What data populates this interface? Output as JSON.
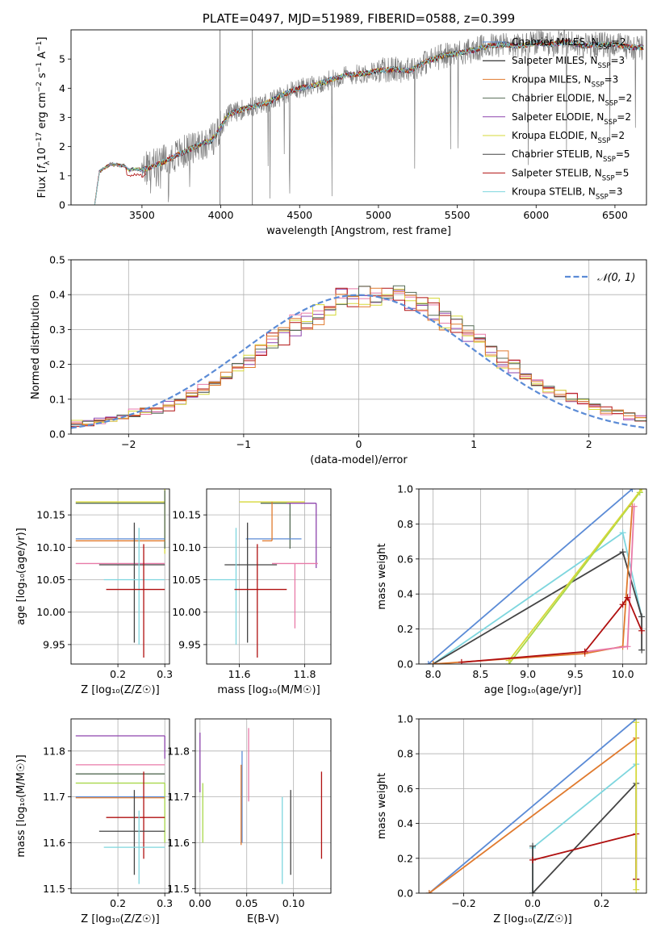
{
  "colors": {
    "chabrier_miles": "#5b8bd6",
    "salpeter_miles": "#000000",
    "kroupa_miles": "#e07a2e",
    "chabrier_elodie": "#556b55",
    "salpeter_elodie": "#8e44ad",
    "kroupa_elodie": "#d6d83a",
    "chabrier_stelib": "#444444",
    "salpeter_stelib": "#b01010",
    "kroupa_stelib": "#7ed6de",
    "data": "#808080",
    "pink": "#e87aa8",
    "lime": "#a8d84a",
    "grid": "#b0b0b0"
  },
  "chart_data": [
    {
      "id": "spectrum",
      "type": "line",
      "title": "PLATE=0497, MJD=51989, FIBERID=0588, z=0.399",
      "xlabel": "wavelength [Angstrom, rest frame]",
      "ylabel_parts": [
        "Flux [",
        "f",
        "λ",
        "10",
        "−17",
        " erg cm",
        "−2",
        " s",
        "−1",
        " A",
        "−1",
        "]"
      ],
      "xlim": [
        3050,
        6700
      ],
      "ylim": [
        0,
        6
      ],
      "xticks": [
        3500,
        4000,
        4500,
        5000,
        5500,
        6000,
        6500
      ],
      "yticks": [
        0,
        1,
        2,
        3,
        4,
        5
      ],
      "grid": false,
      "legend_placement": "top-right",
      "spectrum_keypoints": {
        "x": [
          3200,
          3230,
          3300,
          3380,
          3420,
          3460,
          3500,
          3560,
          3650,
          3720,
          3800,
          3880,
          3940,
          3980,
          4050,
          4150,
          4300,
          4400,
          4500,
          4600,
          4700,
          4800,
          4900,
          5000,
          5100,
          5200,
          5300,
          5400,
          5500,
          5600,
          5700,
          5800,
          5900,
          6000,
          6100,
          6200,
          6300,
          6400,
          6500,
          6600
        ],
        "y": [
          0,
          1.15,
          1.4,
          1.35,
          1.2,
          1.25,
          1.2,
          1.3,
          1.5,
          1.7,
          1.9,
          2.1,
          2.2,
          2.5,
          3.1,
          3.3,
          3.5,
          3.8,
          4.0,
          4.1,
          4.3,
          4.45,
          4.5,
          4.6,
          4.65,
          4.6,
          4.9,
          5.1,
          5.2,
          5.3,
          5.45,
          5.5,
          5.45,
          5.55,
          5.5,
          5.6,
          5.45,
          5.5,
          5.5,
          5.4
        ]
      },
      "series": [
        {
          "name_parts": [
            "Chabrier MILES, N",
            "SSP",
            "=2"
          ],
          "color_key": "chabrier_miles"
        },
        {
          "name_parts": [
            "Salpeter MILES, N",
            "SSP",
            "=3"
          ],
          "color_key": "salpeter_miles"
        },
        {
          "name_parts": [
            "Kroupa MILES, N",
            "SSP",
            "=3"
          ],
          "color_key": "kroupa_miles"
        },
        {
          "name_parts": [
            "Chabrier ELODIE, N",
            "SSP",
            "=2"
          ],
          "color_key": "chabrier_elodie"
        },
        {
          "name_parts": [
            "Salpeter ELODIE, N",
            "SSP",
            "=2"
          ],
          "color_key": "salpeter_elodie"
        },
        {
          "name_parts": [
            "Kroupa ELODIE, N",
            "SSP",
            "=2"
          ],
          "color_key": "kroupa_elodie"
        },
        {
          "name_parts": [
            "Chabrier STELIB, N",
            "SSP",
            "=5"
          ],
          "color_key": "chabrier_stelib"
        },
        {
          "name_parts": [
            "Salpeter STELIB, N",
            "SSP",
            "=5"
          ],
          "color_key": "salpeter_stelib"
        },
        {
          "name_parts": [
            "Kroupa STELIB, N",
            "SSP",
            "=3"
          ],
          "color_key": "kroupa_stelib"
        }
      ]
    },
    {
      "id": "residuals",
      "type": "line",
      "xlabel": "(data-model)/error",
      "ylabel": "Normed distribution",
      "xlim": [
        -2.5,
        2.5
      ],
      "ylim": [
        0,
        0.5
      ],
      "xticks": [
        -2,
        -1,
        0,
        1,
        2
      ],
      "yticks": [
        0.0,
        0.1,
        0.2,
        0.3,
        0.4,
        0.5
      ],
      "grid": true,
      "legend_placement": "top-right",
      "gaussian_label": "𝒩(0, 1)",
      "hist_series_colors": [
        "salpeter_elodie",
        "pink",
        "kroupa_elodie",
        "salpeter_stelib",
        "chabrier_elodie",
        "kroupa_miles"
      ]
    },
    {
      "id": "age_vs_Z",
      "type": "scatter",
      "xlabel": "Z [log₁₀(Z/Z☉)]",
      "ylabel": "age  [log₁₀(age/yr)]",
      "xlim": [
        0.1,
        0.31
      ],
      "ylim": [
        9.92,
        10.19
      ],
      "xticks": [
        0.2,
        0.3
      ],
      "yticks": [
        9.95,
        10.0,
        10.05,
        10.1,
        10.15
      ],
      "grid": true,
      "points": [
        {
          "color_key": "kroupa_elodie",
          "x": 0.3,
          "y": 10.17,
          "xerr": [
            0.19,
            0.0
          ],
          "yerr": [
            0.08,
            0.02
          ]
        },
        {
          "color_key": "chabrier_elodie",
          "x": 0.3,
          "y": 10.168,
          "xerr": [
            0.19,
            0.0
          ],
          "yerr": [
            0.07,
            0.02
          ]
        },
        {
          "color_key": "chabrier_miles",
          "x": 0.3,
          "y": 10.113,
          "xerr": [
            0.19,
            0.0
          ],
          "yerr": [
            0.0,
            0.0
          ]
        },
        {
          "color_key": "kroupa_miles",
          "x": 0.3,
          "y": 10.11,
          "xerr": [
            0.19,
            0.0
          ],
          "yerr": [
            0.0,
            0.0
          ]
        },
        {
          "color_key": "pink",
          "x": 0.3,
          "y": 10.075,
          "xerr": [
            0.19,
            0.0
          ],
          "yerr": [
            0.0,
            0.0
          ]
        },
        {
          "color_key": "chabrier_stelib",
          "x": 0.235,
          "y": 10.073,
          "xerr": [
            0.075,
            0.065
          ],
          "yerr": [
            0.12,
            0.065
          ]
        },
        {
          "color_key": "kroupa_stelib",
          "x": 0.245,
          "y": 10.05,
          "xerr": [
            0.075,
            0.055
          ],
          "yerr": [
            0.1,
            0.08
          ]
        },
        {
          "color_key": "salpeter_stelib",
          "x": 0.255,
          "y": 10.035,
          "xerr": [
            0.08,
            0.045
          ],
          "yerr": [
            0.105,
            0.07
          ]
        }
      ]
    },
    {
      "id": "age_vs_mass",
      "type": "scatter",
      "xlabel": "mass [log₁₀(M/M☉)]",
      "xlim": [
        11.5,
        11.88
      ],
      "ylim": [
        9.92,
        10.19
      ],
      "xticks": [
        11.6,
        11.8
      ],
      "yticks": [
        9.95,
        10.0,
        10.05,
        10.1,
        10.15
      ],
      "grid": true,
      "points": [
        {
          "color_key": "kroupa_elodie",
          "x": 11.73,
          "y": 10.17,
          "xerr": [
            0.13,
            0.07
          ],
          "yerr": [
            0.0,
            0.0
          ]
        },
        {
          "color_key": "chabrier_elodie",
          "x": 11.755,
          "y": 10.168,
          "xerr": [
            0.09,
            0.0
          ],
          "yerr": [
            0.07,
            0.0
          ]
        },
        {
          "color_key": "salpeter_elodie",
          "x": 11.835,
          "y": 10.168,
          "xerr": [
            0.09,
            0.0
          ],
          "yerr": [
            0.1,
            0.0
          ]
        },
        {
          "color_key": "chabrier_miles",
          "x": 11.7,
          "y": 10.113,
          "xerr": [
            0.08,
            0.09
          ],
          "yerr": [
            0.0,
            0.0
          ]
        },
        {
          "color_key": "kroupa_miles",
          "x": 11.7,
          "y": 10.11,
          "xerr": [
            0.03,
            0.0
          ],
          "yerr": [
            0.0,
            0.06
          ]
        },
        {
          "color_key": "pink",
          "x": 11.77,
          "y": 10.075,
          "xerr": [
            0.07,
            0.07
          ],
          "yerr": [
            0.1,
            0.0
          ]
        },
        {
          "color_key": "chabrier_stelib",
          "x": 11.625,
          "y": 10.073,
          "xerr": [
            0.07,
            0.09
          ],
          "yerr": [
            0.12,
            0.065
          ]
        },
        {
          "color_key": "kroupa_stelib",
          "x": 11.59,
          "y": 10.05,
          "xerr": [
            0.08,
            0.0
          ],
          "yerr": [
            0.1,
            0.08
          ]
        },
        {
          "color_key": "salpeter_stelib",
          "x": 11.655,
          "y": 10.035,
          "xerr": [
            0.07,
            0.09
          ],
          "yerr": [
            0.105,
            0.07
          ]
        }
      ]
    },
    {
      "id": "mass_weight_vs_age",
      "type": "line",
      "xlabel": "age  [log₁₀(age/yr)]",
      "ylabel": "mass weight",
      "xlim": [
        7.85,
        10.25
      ],
      "ylim": [
        0,
        1
      ],
      "xticks": [
        8.0,
        8.5,
        9.0,
        9.5,
        10.0
      ],
      "yticks": [
        0.0,
        0.2,
        0.4,
        0.6,
        0.8,
        1.0
      ],
      "grid": true,
      "series": [
        {
          "color_key": "chabrier_miles",
          "x": [
            7.95,
            10.1
          ],
          "y": [
            0.0,
            1.0
          ]
        },
        {
          "color_key": "kroupa_stelib",
          "x": [
            8.0,
            10.0,
            10.2
          ],
          "y": [
            0.0,
            0.75,
            0.27
          ]
        },
        {
          "color_key": "chabrier_stelib",
          "x": [
            8.0,
            10.0,
            10.2,
            10.2
          ],
          "y": [
            0.0,
            0.64,
            0.27,
            0.08
          ]
        },
        {
          "color_key": "lime",
          "x": [
            8.8,
            10.18
          ],
          "y": [
            0.0,
            0.98
          ]
        },
        {
          "color_key": "kroupa_elodie",
          "x": [
            8.8,
            10.2
          ],
          "y": [
            0.02,
            1.0
          ]
        },
        {
          "color_key": "kroupa_miles",
          "x": [
            8.0,
            9.6,
            10.0,
            10.1
          ],
          "y": [
            0.0,
            0.06,
            0.1,
            0.9
          ]
        },
        {
          "color_key": "pink",
          "x": [
            9.6,
            10.05,
            10.12
          ],
          "y": [
            0.07,
            0.1,
            0.9
          ]
        },
        {
          "color_key": "salpeter_stelib",
          "x": [
            8.3,
            9.6,
            10.0,
            10.05,
            10.2
          ],
          "y": [
            0.01,
            0.07,
            0.34,
            0.38,
            0.19
          ]
        }
      ]
    },
    {
      "id": "mass_vs_Z",
      "type": "scatter",
      "xlabel": "Z [log₁₀(Z/Z☉)]",
      "ylabel": "mass [log₁₀(M/M☉)]",
      "xlim": [
        0.1,
        0.31
      ],
      "ylim": [
        11.49,
        11.87
      ],
      "xticks": [
        0.2,
        0.3
      ],
      "yticks": [
        11.5,
        11.6,
        11.7,
        11.8
      ],
      "grid": true,
      "points": [
        {
          "color_key": "salpeter_elodie",
          "x": 0.3,
          "y": 11.833,
          "xerr": [
            0.19,
            0.0
          ],
          "yerr": [
            0.05,
            0.0
          ]
        },
        {
          "color_key": "pink",
          "x": 0.3,
          "y": 11.77,
          "xerr": [
            0.19,
            0.0
          ],
          "yerr": [
            0.0,
            0.0
          ]
        },
        {
          "color_key": "chabrier_elodie",
          "x": 0.3,
          "y": 11.75,
          "xerr": [
            0.19,
            0.0
          ],
          "yerr": [
            0.0,
            0.0
          ]
        },
        {
          "color_key": "lime",
          "x": 0.3,
          "y": 11.73,
          "xerr": [
            0.19,
            0.0
          ],
          "yerr": [
            0.13,
            0.0
          ]
        },
        {
          "color_key": "chabrier_miles",
          "x": 0.3,
          "y": 11.7,
          "xerr": [
            0.19,
            0.0
          ],
          "yerr": [
            0.0,
            0.0
          ]
        },
        {
          "color_key": "kroupa_miles",
          "x": 0.3,
          "y": 11.698,
          "xerr": [
            0.19,
            0.0
          ],
          "yerr": [
            0.0,
            0.0
          ]
        },
        {
          "color_key": "salpeter_stelib",
          "x": 0.255,
          "y": 11.655,
          "xerr": [
            0.08,
            0.045
          ],
          "yerr": [
            0.09,
            0.1
          ]
        },
        {
          "color_key": "chabrier_stelib",
          "x": 0.235,
          "y": 11.625,
          "xerr": [
            0.075,
            0.065
          ],
          "yerr": [
            0.095,
            0.09
          ]
        },
        {
          "color_key": "kroupa_stelib",
          "x": 0.245,
          "y": 11.59,
          "xerr": [
            0.075,
            0.055
          ],
          "yerr": [
            0.08,
            0.08
          ]
        }
      ]
    },
    {
      "id": "mass_vs_ebv",
      "type": "scatter",
      "xlabel": "E(B-V)",
      "xlim": [
        -0.005,
        0.14
      ],
      "ylim": [
        11.49,
        11.87
      ],
      "xticks": [
        0.0,
        0.05,
        0.1
      ],
      "xtick_labels": [
        "0.00",
        "0.05",
        "0.10"
      ],
      "yticks": [
        11.5,
        11.6,
        11.7,
        11.8
      ],
      "grid": true,
      "points": [
        {
          "color_key": "salpeter_elodie",
          "x": 0.0,
          "y": 11.75,
          "xerr": [
            0.0,
            0.0
          ],
          "yerr": [
            0.04,
            0.09
          ]
        },
        {
          "color_key": "lime",
          "x": 0.003,
          "y": 11.65,
          "xerr": [
            0.0,
            0.0
          ],
          "yerr": [
            0.05,
            0.08
          ]
        },
        {
          "color_key": "chabrier_miles",
          "x": 0.045,
          "y": 11.7,
          "xerr": [
            0.0,
            0.0
          ],
          "yerr": [
            0.1,
            0.1
          ]
        },
        {
          "color_key": "kroupa_miles",
          "x": 0.044,
          "y": 11.69,
          "xerr": [
            0.0,
            0.0
          ],
          "yerr": [
            0.095,
            0.08
          ]
        },
        {
          "color_key": "pink",
          "x": 0.052,
          "y": 11.75,
          "xerr": [
            0.0,
            0.0
          ],
          "yerr": [
            0.06,
            0.1
          ]
        },
        {
          "color_key": "kroupa_stelib",
          "x": 0.088,
          "y": 11.59,
          "xerr": [
            0.0,
            0.0
          ],
          "yerr": [
            0.08,
            0.11
          ]
        },
        {
          "color_key": "chabrier_stelib",
          "x": 0.097,
          "y": 11.625,
          "xerr": [
            0.0,
            0.0
          ],
          "yerr": [
            0.095,
            0.09
          ]
        },
        {
          "color_key": "salpeter_stelib",
          "x": 0.13,
          "y": 11.655,
          "xerr": [
            0.0,
            0.0
          ],
          "yerr": [
            0.09,
            0.1
          ]
        }
      ]
    },
    {
      "id": "mass_weight_vs_Z",
      "type": "line",
      "xlabel": "Z [log₁₀(Z/Z☉)]",
      "ylabel": "mass weight",
      "xlim": [
        -0.33,
        0.33
      ],
      "ylim": [
        0,
        1
      ],
      "xticks": [
        -0.2,
        0.0,
        0.2
      ],
      "xtick_labels": [
        "−0.2",
        "0.0",
        "0.2"
      ],
      "yticks": [
        0.0,
        0.2,
        0.4,
        0.6,
        0.8,
        1.0
      ],
      "grid": true,
      "series": [
        {
          "color_key": "chabrier_miles",
          "x": [
            -0.3,
            0.3
          ],
          "y": [
            0.0,
            1.0
          ]
        },
        {
          "color_key": "kroupa_miles",
          "x": [
            -0.3,
            0.3
          ],
          "y": [
            0.0,
            0.89
          ]
        },
        {
          "color_key": "kroupa_stelib",
          "x": [
            0.0,
            0.0,
            0.3
          ],
          "y": [
            0.0,
            0.26,
            0.74
          ]
        },
        {
          "color_key": "chabrier_stelib",
          "x": [
            0.0,
            0.0,
            0.3,
            0.3
          ],
          "y": [
            0.27,
            0.0,
            0.63,
            0.08
          ]
        },
        {
          "color_key": "salpeter_stelib",
          "x": [
            0.0,
            0.0,
            0.3,
            0.3
          ],
          "y": [
            0.19,
            0.19,
            0.34,
            0.08
          ]
        },
        {
          "color_key": "kroupa_elodie",
          "x": [
            0.3,
            0.3
          ],
          "y": [
            0.02,
            0.98
          ]
        }
      ]
    }
  ]
}
